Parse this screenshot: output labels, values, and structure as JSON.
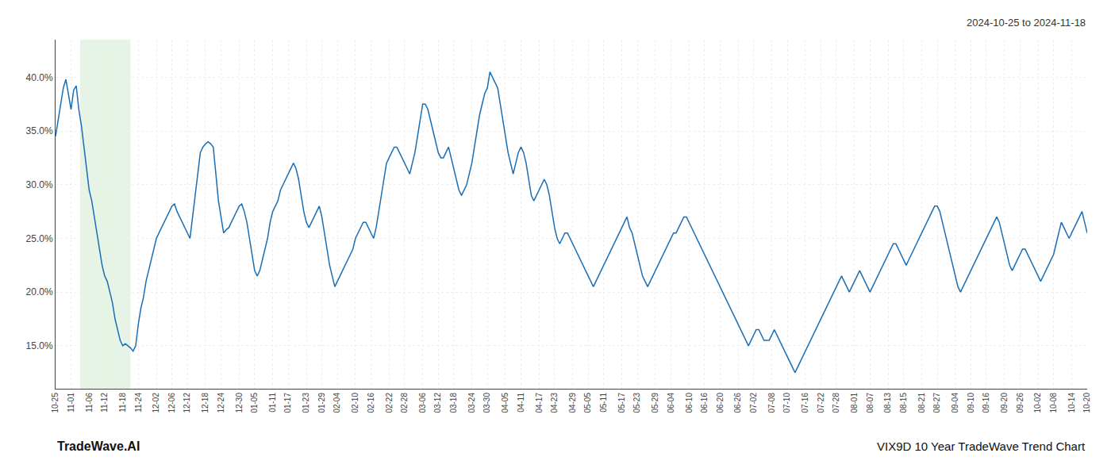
{
  "chart_data": {
    "type": "line",
    "title": "VIX9D 10 Year TradeWave Trend Chart",
    "subtitle": "2024-10-25 to 2024-11-18",
    "annotations": [
      "TradeWave.AI"
    ],
    "categories": [
      "10-25",
      null,
      null,
      null,
      null,
      null,
      "11-01",
      null,
      null,
      null,
      null,
      null,
      null,
      "11-06",
      null,
      null,
      null,
      null,
      null,
      "11-12",
      null,
      null,
      null,
      null,
      null,
      null,
      "11-18",
      null,
      null,
      null,
      null,
      null,
      "11-24",
      null,
      null,
      null,
      null,
      null,
      null,
      "12-02",
      null,
      null,
      null,
      null,
      null,
      "12-06",
      null,
      null,
      null,
      null,
      null,
      "12-12",
      null,
      null,
      null,
      null,
      null,
      null,
      "12-18",
      null,
      null,
      null,
      null,
      null,
      "12-24",
      null,
      null,
      null,
      null,
      null,
      null,
      "12-30",
      null,
      null,
      null,
      null,
      null,
      "01-05",
      null,
      null,
      null,
      null,
      null,
      null,
      "01-11",
      null,
      null,
      null,
      null,
      null,
      "01-17",
      null,
      null,
      null,
      null,
      null,
      null,
      "01-23",
      null,
      null,
      null,
      null,
      null,
      "01-29",
      null,
      null,
      null,
      null,
      null,
      "02-04",
      null,
      null,
      null,
      null,
      null,
      null,
      "02-10",
      null,
      null,
      null,
      null,
      null,
      "02-16",
      null,
      null,
      null,
      null,
      null,
      null,
      "02-22",
      null,
      null,
      null,
      null,
      null,
      "02-28",
      null,
      null,
      null,
      null,
      null,
      null,
      "03-06",
      null,
      null,
      null,
      null,
      null,
      "03-12",
      null,
      null,
      null,
      null,
      null,
      "03-18",
      null,
      null,
      null,
      null,
      null,
      null,
      "03-24",
      null,
      null,
      null,
      null,
      null,
      "03-30",
      null,
      null,
      null,
      null,
      null,
      null,
      "04-05",
      null,
      null,
      null,
      null,
      null,
      "04-11",
      null,
      null,
      null,
      null,
      null,
      null,
      "04-17",
      null,
      null,
      null,
      null,
      null,
      "04-23",
      null,
      null,
      null,
      null,
      null,
      null,
      "04-29",
      null,
      null,
      null,
      null,
      null,
      "05-05",
      null,
      null,
      null,
      null,
      null,
      "05-11",
      null,
      null,
      null,
      null,
      null,
      null,
      "05-17",
      null,
      null,
      null,
      null,
      null,
      "05-23",
      null,
      null,
      null,
      null,
      null,
      null,
      "05-29",
      null,
      null,
      null,
      null,
      null,
      "06-04",
      null,
      null,
      null,
      null,
      null,
      null,
      "06-10",
      null,
      null,
      null,
      null,
      null,
      "06-16",
      null,
      null,
      null,
      null,
      null,
      "06-20",
      null,
      null,
      null,
      null,
      null,
      null,
      "06-26",
      null,
      null,
      null,
      null,
      null,
      "07-02",
      null,
      null,
      null,
      null,
      null,
      null,
      "07-08",
      null,
      null,
      null,
      null,
      null,
      "07-10",
      null,
      null,
      null,
      null,
      null,
      null,
      "07-16",
      null,
      null,
      null,
      null,
      null,
      "07-22",
      null,
      null,
      null,
      null,
      null,
      "07-28",
      null,
      null,
      null,
      null,
      null,
      null,
      "08-01",
      null,
      null,
      null,
      null,
      null,
      "08-07",
      null,
      null,
      null,
      null,
      null,
      null,
      "08-13",
      null,
      null,
      null,
      null,
      null,
      "08-15",
      null,
      null,
      null,
      null,
      null,
      null,
      "08-21",
      null,
      null,
      null,
      null,
      null,
      "08-27",
      null,
      null,
      null,
      null,
      null,
      null,
      "09-04",
      null,
      null,
      null,
      null,
      null,
      "09-10",
      null,
      null,
      null,
      null,
      null,
      "09-16",
      null,
      null,
      null,
      null,
      null,
      null,
      "09-20",
      null,
      null,
      null,
      null,
      null,
      "09-26",
      null,
      null,
      null,
      null,
      null,
      null,
      "10-02",
      null,
      null,
      null,
      null,
      null,
      "10-08",
      null,
      null,
      null,
      null,
      null,
      null,
      "10-14",
      null,
      null,
      null,
      null,
      null,
      "10-20"
    ],
    "series": [
      {
        "color": "#1a6eb5",
        "values": [
          34.5,
          36.0,
          37.5,
          39.0,
          39.8,
          38.5,
          37.0,
          38.8,
          39.2,
          37.0,
          35.5,
          33.5,
          31.5,
          29.5,
          28.5,
          27.0,
          25.5,
          24.0,
          22.5,
          21.5,
          21.0,
          20.0,
          19.0,
          17.5,
          16.5,
          15.5,
          15.0,
          15.2,
          15.0,
          14.8,
          14.5,
          15.0,
          17.0,
          18.5,
          19.5,
          21.0,
          22.0,
          23.0,
          24.0,
          25.0,
          25.5,
          26.0,
          26.5,
          27.0,
          27.5,
          28.0,
          28.2,
          27.5,
          27.0,
          26.5,
          26.0,
          25.5,
          25.0,
          27.0,
          29.0,
          31.0,
          33.0,
          33.5,
          33.8,
          34.0,
          33.8,
          33.5,
          31.0,
          28.5,
          27.0,
          25.5,
          25.8,
          26.0,
          26.5,
          27.0,
          27.5,
          28.0,
          28.2,
          27.5,
          26.5,
          25.0,
          23.5,
          22.0,
          21.5,
          22.0,
          23.0,
          24.0,
          25.0,
          26.5,
          27.5,
          28.0,
          28.5,
          29.5,
          30.0,
          30.5,
          31.0,
          31.5,
          32.0,
          31.5,
          30.5,
          29.0,
          27.5,
          26.5,
          26.0,
          26.5,
          27.0,
          27.5,
          28.0,
          27.0,
          25.5,
          24.0,
          22.5,
          21.5,
          20.5,
          21.0,
          21.5,
          22.0,
          22.5,
          23.0,
          23.5,
          24.0,
          25.0,
          25.5,
          26.0,
          26.5,
          26.5,
          26.0,
          25.5,
          25.0,
          26.0,
          27.5,
          29.0,
          30.5,
          32.0,
          32.5,
          33.0,
          33.5,
          33.5,
          33.0,
          32.5,
          32.0,
          31.5,
          31.0,
          32.0,
          33.0,
          34.5,
          36.0,
          37.5,
          37.5,
          37.0,
          36.0,
          35.0,
          34.0,
          33.0,
          32.5,
          32.5,
          33.0,
          33.5,
          32.5,
          31.5,
          30.5,
          29.5,
          29.0,
          29.5,
          30.0,
          31.0,
          32.0,
          33.5,
          35.0,
          36.5,
          37.5,
          38.5,
          39.0,
          40.5,
          40.0,
          39.5,
          39.0,
          37.5,
          36.0,
          34.5,
          33.0,
          32.0,
          31.0,
          32.0,
          33.0,
          33.5,
          33.0,
          32.0,
          30.5,
          29.0,
          28.5,
          29.0,
          29.5,
          30.0,
          30.5,
          30.0,
          29.0,
          27.5,
          26.0,
          25.0,
          24.5,
          25.0,
          25.5,
          25.5,
          25.0,
          24.5,
          24.0,
          23.5,
          23.0,
          22.5,
          22.0,
          21.5,
          21.0,
          20.5,
          21.0,
          21.5,
          22.0,
          22.5,
          23.0,
          23.5,
          24.0,
          24.5,
          25.0,
          25.5,
          26.0,
          26.5,
          27.0,
          26.0,
          25.5,
          24.5,
          23.5,
          22.5,
          21.5,
          21.0,
          20.5,
          21.0,
          21.5,
          22.0,
          22.5,
          23.0,
          23.5,
          24.0,
          24.5,
          25.0,
          25.5,
          25.5,
          26.0,
          26.5,
          27.0,
          27.0,
          26.5,
          26.0,
          25.5,
          25.0,
          24.5,
          24.0,
          23.5,
          23.0,
          22.5,
          22.0,
          21.5,
          21.0,
          20.5,
          20.0,
          19.5,
          19.0,
          18.5,
          18.0,
          17.5,
          17.0,
          16.5,
          16.0,
          15.5,
          15.0,
          15.5,
          16.0,
          16.5,
          16.5,
          16.0,
          15.5,
          15.5,
          15.5,
          16.0,
          16.5,
          16.0,
          15.5,
          15.0,
          14.5,
          14.0,
          13.5,
          13.0,
          12.5,
          13.0,
          13.5,
          14.0,
          14.5,
          15.0,
          15.5,
          16.0,
          16.5,
          17.0,
          17.5,
          18.0,
          18.5,
          19.0,
          19.5,
          20.0,
          20.5,
          21.0,
          21.5,
          21.0,
          20.5,
          20.0,
          20.5,
          21.0,
          21.5,
          22.0,
          21.5,
          21.0,
          20.5,
          20.0,
          20.5,
          21.0,
          21.5,
          22.0,
          22.5,
          23.0,
          23.5,
          24.0,
          24.5,
          24.5,
          24.0,
          23.5,
          23.0,
          22.5,
          23.0,
          23.5,
          24.0,
          24.5,
          25.0,
          25.5,
          26.0,
          26.5,
          27.0,
          27.5,
          28.0,
          28.0,
          27.5,
          26.5,
          25.5,
          24.5,
          23.5,
          22.5,
          21.5,
          20.5,
          20.0,
          20.5,
          21.0,
          21.5,
          22.0,
          22.5,
          23.0,
          23.5,
          24.0,
          24.5,
          25.0,
          25.5,
          26.0,
          26.5,
          27.0,
          26.5,
          25.5,
          24.5,
          23.5,
          22.5,
          22.0,
          22.5,
          23.0,
          23.5,
          24.0,
          24.0,
          23.5,
          23.0,
          22.5,
          22.0,
          21.5,
          21.0,
          21.5,
          22.0,
          22.5,
          23.0,
          23.5,
          24.5,
          25.5,
          26.5,
          26.0,
          25.5,
          25.0,
          25.5,
          26.0,
          26.5,
          27.0,
          27.5,
          26.5,
          25.5
        ]
      }
    ],
    "ylim": [
      11.0,
      43.5
    ],
    "yticks": [
      {
        "value": 15.0,
        "label": "15.0%"
      },
      {
        "value": 20.0,
        "label": "20.0%"
      },
      {
        "value": 25.0,
        "label": "25.0%"
      },
      {
        "value": 30.0,
        "label": "30.0%"
      },
      {
        "value": 35.0,
        "label": "35.0%"
      },
      {
        "value": 40.0,
        "label": "40.0%"
      }
    ],
    "grid": true
  }
}
